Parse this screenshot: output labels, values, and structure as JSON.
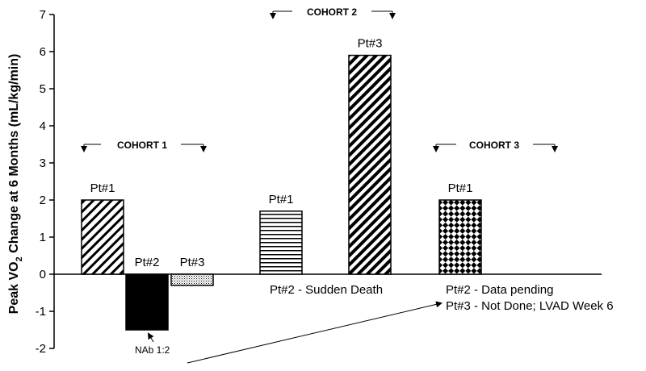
{
  "chart_data": {
    "type": "bar",
    "title": "",
    "xlabel": "",
    "ylabel": "Peak VO2 Change at 6 Months (mL/kg/min)",
    "ylabel_parts": {
      "pre": "Peak VO",
      "sub": "2",
      "post": " Change at 6 Months (mL/kg/min)"
    },
    "ylim": [
      -2,
      7
    ],
    "yticks": [
      -2,
      -1,
      0,
      1,
      2,
      3,
      4,
      5,
      6,
      7
    ],
    "grid": false,
    "legend": "none",
    "groups": [
      {
        "name": "COHORT 1",
        "bars": [
          {
            "label": "Pt#1",
            "value": 2.0,
            "pattern": "diag-thin"
          },
          {
            "label": "Pt#2",
            "value": -1.5,
            "pattern": "solid-black"
          },
          {
            "label": "Pt#3",
            "value": -0.3,
            "pattern": "dots"
          }
        ]
      },
      {
        "name": "COHORT 2",
        "bars": [
          {
            "label": "Pt#1",
            "value": 1.7,
            "pattern": "horizontal"
          },
          {
            "label": "Pt#3",
            "value": 5.9,
            "pattern": "diag-thick"
          }
        ]
      },
      {
        "name": "COHORT 3",
        "bars": [
          {
            "label": "Pt#1",
            "value": 2.0,
            "pattern": "checker"
          }
        ]
      }
    ],
    "annotations": {
      "cohort2_note": "Pt#2 - Sudden Death",
      "cohort3_note1": "Pt#2 - Data pending",
      "cohort3_note2": "Pt#3 - Not Done; LVAD Week 6",
      "nab": "NAb 1:2"
    }
  }
}
